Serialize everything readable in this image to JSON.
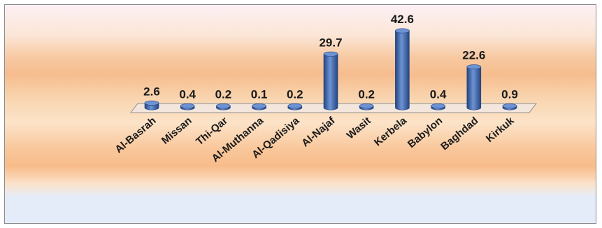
{
  "chart_data": {
    "type": "bar",
    "categories": [
      "Al-Basrah",
      "Missan",
      "Thi-Qar",
      "Al-Muthanna",
      "Al-Qadisiya",
      "Al-Najaf",
      "Wasit",
      "Kerbela",
      "Babylon",
      "Baghdad",
      "Kirkuk"
    ],
    "values": [
      2.6,
      0.4,
      0.2,
      0.1,
      0.2,
      29.7,
      0.2,
      42.6,
      0.4,
      22.6,
      0.9
    ],
    "value_labels": [
      "2.6",
      "0.4",
      "0.2",
      "0.1",
      "0.2",
      "29.7",
      "0.2",
      "42.6",
      "0.4",
      "22.6",
      "0.9"
    ],
    "title": "",
    "xlabel": "",
    "ylabel": "",
    "ylim": [
      0,
      42.6
    ],
    "bar_shape": "3d-cylinder",
    "grid": false,
    "legend": "none",
    "colors": {
      "bar_fill": "#3a63a8",
      "bar_light": "#6d93d4",
      "bar_dark": "#24447f",
      "floor_fill": "#f3e6dc",
      "floor_stroke": "#8f8f8f",
      "text": "#1a1a1a"
    }
  }
}
